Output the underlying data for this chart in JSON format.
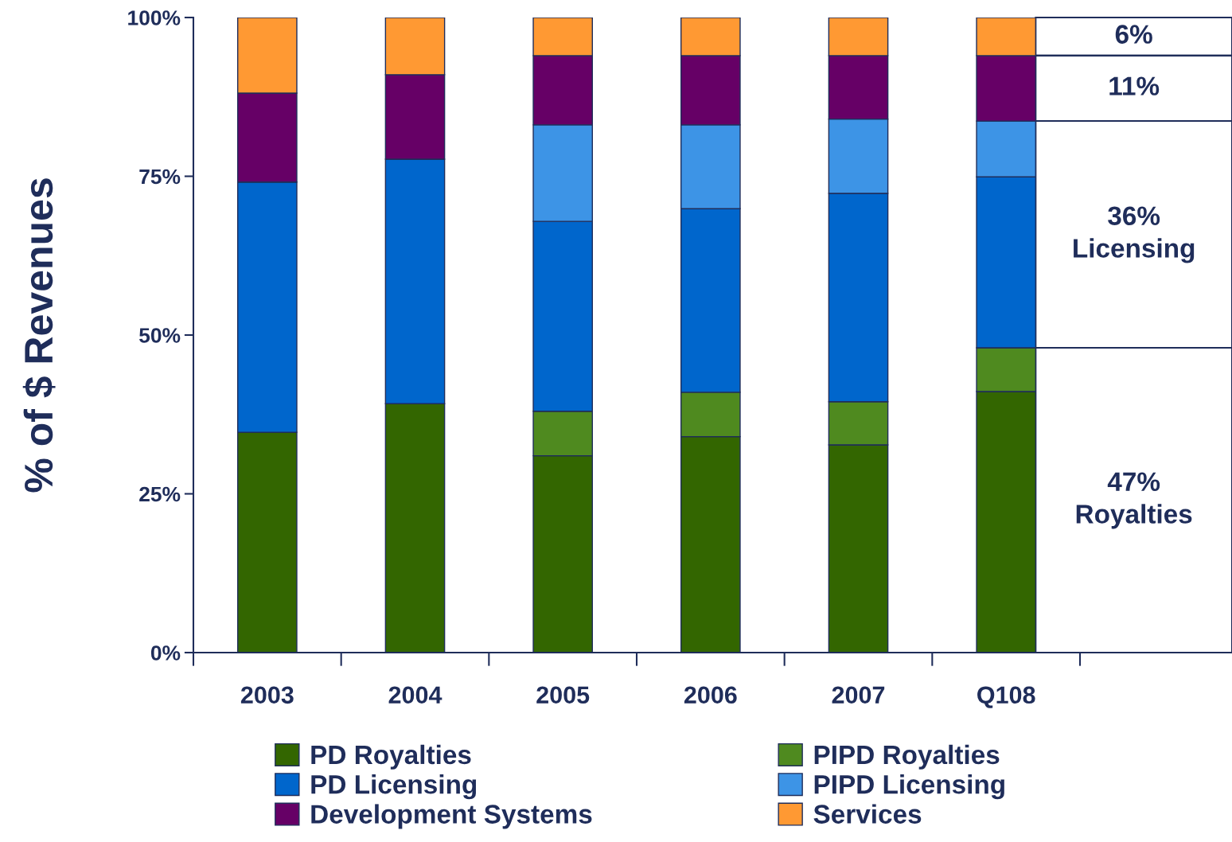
{
  "chart_data": {
    "type": "bar",
    "stacked": true,
    "ylabel": "% of $ Revenues",
    "categories": [
      "2003",
      "2004",
      "2005",
      "2006",
      "2007",
      "Q108"
    ],
    "series": [
      {
        "name": "PD Royalties",
        "color": "#336600",
        "values": [
          34.7,
          39.2,
          31.0,
          34.0,
          32.7,
          41.1
        ]
      },
      {
        "name": "PIPD Royalties",
        "color": "#4f8a1f",
        "values": [
          0,
          0,
          7.0,
          7.0,
          6.8,
          6.9
        ]
      },
      {
        "name": "PD Licensing",
        "color": "#0066cc",
        "values": [
          39.4,
          38.5,
          29.9,
          28.9,
          32.8,
          26.9
        ]
      },
      {
        "name": "PIPD Licensing",
        "color": "#3d94e6",
        "values": [
          0,
          0,
          15.2,
          13.2,
          11.7,
          8.8
        ]
      },
      {
        "name": "Development Systems",
        "color": "#660066",
        "values": [
          14.0,
          13.3,
          10.9,
          10.9,
          10.0,
          10.3
        ]
      },
      {
        "name": "Services",
        "color": "#ff9933",
        "values": [
          11.9,
          9.0,
          6.0,
          6.0,
          6.0,
          6.0
        ]
      }
    ],
    "ylim": [
      0,
      100
    ],
    "yticks": [
      {
        "value": 0,
        "label": "0%"
      },
      {
        "value": 25,
        "label": "25%"
      },
      {
        "value": 50,
        "label": "50%"
      },
      {
        "value": 75,
        "label": "75%"
      },
      {
        "value": 100,
        "label": "100%"
      }
    ],
    "bands": [
      {
        "axis": "y",
        "from": 94.0,
        "to": 100,
        "label": "6%",
        "color": "#ffffff"
      },
      {
        "axis": "y",
        "from": 83.7,
        "to": 94.0,
        "label": "11%",
        "color": "#ffffff"
      },
      {
        "axis": "y",
        "from": 48.0,
        "to": 83.7,
        "label": "36%\nLicensing",
        "color": "#ffffff"
      },
      {
        "axis": "y",
        "from": 0,
        "to": 48.0,
        "label": "47%\nRoyalties",
        "color": "#ffffff"
      }
    ],
    "legend": "bottom",
    "grid": false
  }
}
